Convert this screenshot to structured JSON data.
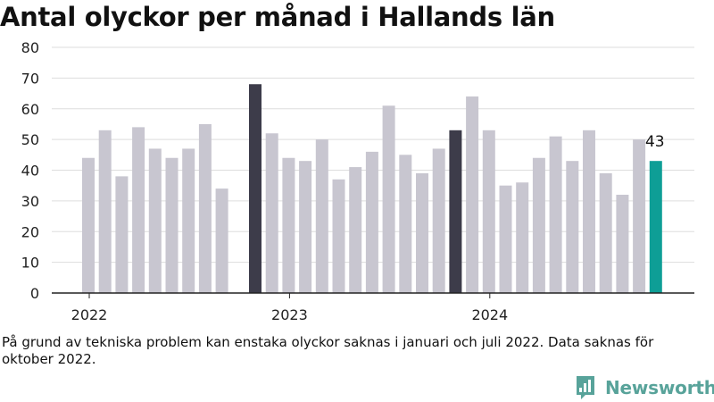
{
  "title": "Antal olyckor per månad i Hallands län",
  "footnote": "På grund av tekniska problem kan enstaka olyckor saknas i januari och juli 2022. Data saknas för oktober 2022.",
  "brand": {
    "name": "Newsworthy"
  },
  "colors": {
    "default_bar": "#c8c6d0",
    "highlight_bar": "#3d3c4a",
    "latest_bar": "#0e9e96",
    "grid": "#dddddd",
    "axis": "#222222"
  },
  "chart_data": {
    "type": "bar",
    "title": "Antal olyckor per månad i Hallands län",
    "xlabel": "",
    "ylabel": "",
    "ylim": [
      0,
      80
    ],
    "yticks": [
      0,
      10,
      20,
      30,
      40,
      50,
      60,
      70,
      80
    ],
    "grid": true,
    "x_tick_labels": [
      {
        "label": "2022",
        "month": "2022-01"
      },
      {
        "label": "2023",
        "month": "2023-01"
      },
      {
        "label": "2024",
        "month": "2024-01"
      }
    ],
    "months": [
      "2022-01",
      "2022-02",
      "2022-03",
      "2022-04",
      "2022-05",
      "2022-06",
      "2022-07",
      "2022-08",
      "2022-09",
      "2022-10",
      "2022-11",
      "2022-12",
      "2023-01",
      "2023-02",
      "2023-03",
      "2023-04",
      "2023-05",
      "2023-06",
      "2023-07",
      "2023-08",
      "2023-09",
      "2023-10",
      "2023-11",
      "2023-12",
      "2024-01",
      "2024-02",
      "2024-03",
      "2024-04",
      "2024-05",
      "2024-06",
      "2024-07",
      "2024-08",
      "2024-09",
      "2024-10",
      "2024-11",
      "2024-12",
      "2025-01",
      "2025-02",
      "2025-03",
      "2025-04"
    ],
    "values": [
      44,
      53,
      38,
      54,
      47,
      44,
      47,
      55,
      34,
      null,
      68,
      52,
      44,
      43,
      50,
      37,
      41,
      46,
      61,
      45,
      39,
      47,
      53,
      64,
      53,
      35,
      36,
      44,
      51,
      43,
      53,
      39,
      32,
      50,
      43,
      null,
      null,
      null,
      null,
      null
    ],
    "highlight_months": [
      "2022-11",
      "2023-11"
    ],
    "latest_month": "2024-11",
    "annotations": [
      {
        "month": "2024-11",
        "text": "43"
      }
    ]
  }
}
